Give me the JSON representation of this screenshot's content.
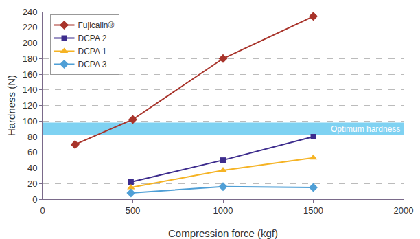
{
  "chart_data": {
    "type": "line",
    "xlabel": "Compression force (kgf)",
    "ylabel": "Hardness (N)",
    "xlim": [
      0,
      2000
    ],
    "xticks": [
      0,
      500,
      1000,
      1500,
      2000
    ],
    "ylim": [
      0,
      240
    ],
    "yticks": [
      0,
      20,
      40,
      60,
      80,
      100,
      120,
      140,
      160,
      180,
      200,
      220,
      240
    ],
    "grid": true,
    "legend": "upper left",
    "series": [
      {
        "name": "Fujicalin®",
        "color": "#a8332a",
        "marker": "diamond",
        "line_style": "solid",
        "x": [
          180,
          500,
          1000,
          1500
        ],
        "values": [
          70,
          102,
          180,
          234
        ]
      },
      {
        "name": "DCPA 2",
        "color": "#3d2c8d",
        "marker": "square",
        "line_style": "solid",
        "x": [
          490,
          1000,
          1500
        ],
        "values": [
          22,
          50,
          80
        ]
      },
      {
        "name": "DCPA 1",
        "color": "#f5b324",
        "marker": "triangle-up",
        "line_style": "solid",
        "x": [
          490,
          1000,
          1500
        ],
        "values": [
          15,
          37,
          53
        ]
      },
      {
        "name": "DCPA 3",
        "color": "#4f9fd6",
        "marker": "diamond",
        "line_style": "solid",
        "x": [
          490,
          1000,
          1500
        ],
        "values": [
          8,
          16,
          15
        ]
      }
    ],
    "annotations": [
      {
        "text": "Optimum hardness",
        "y_range": [
          82,
          98
        ],
        "color": "#7fd2f2"
      }
    ]
  }
}
